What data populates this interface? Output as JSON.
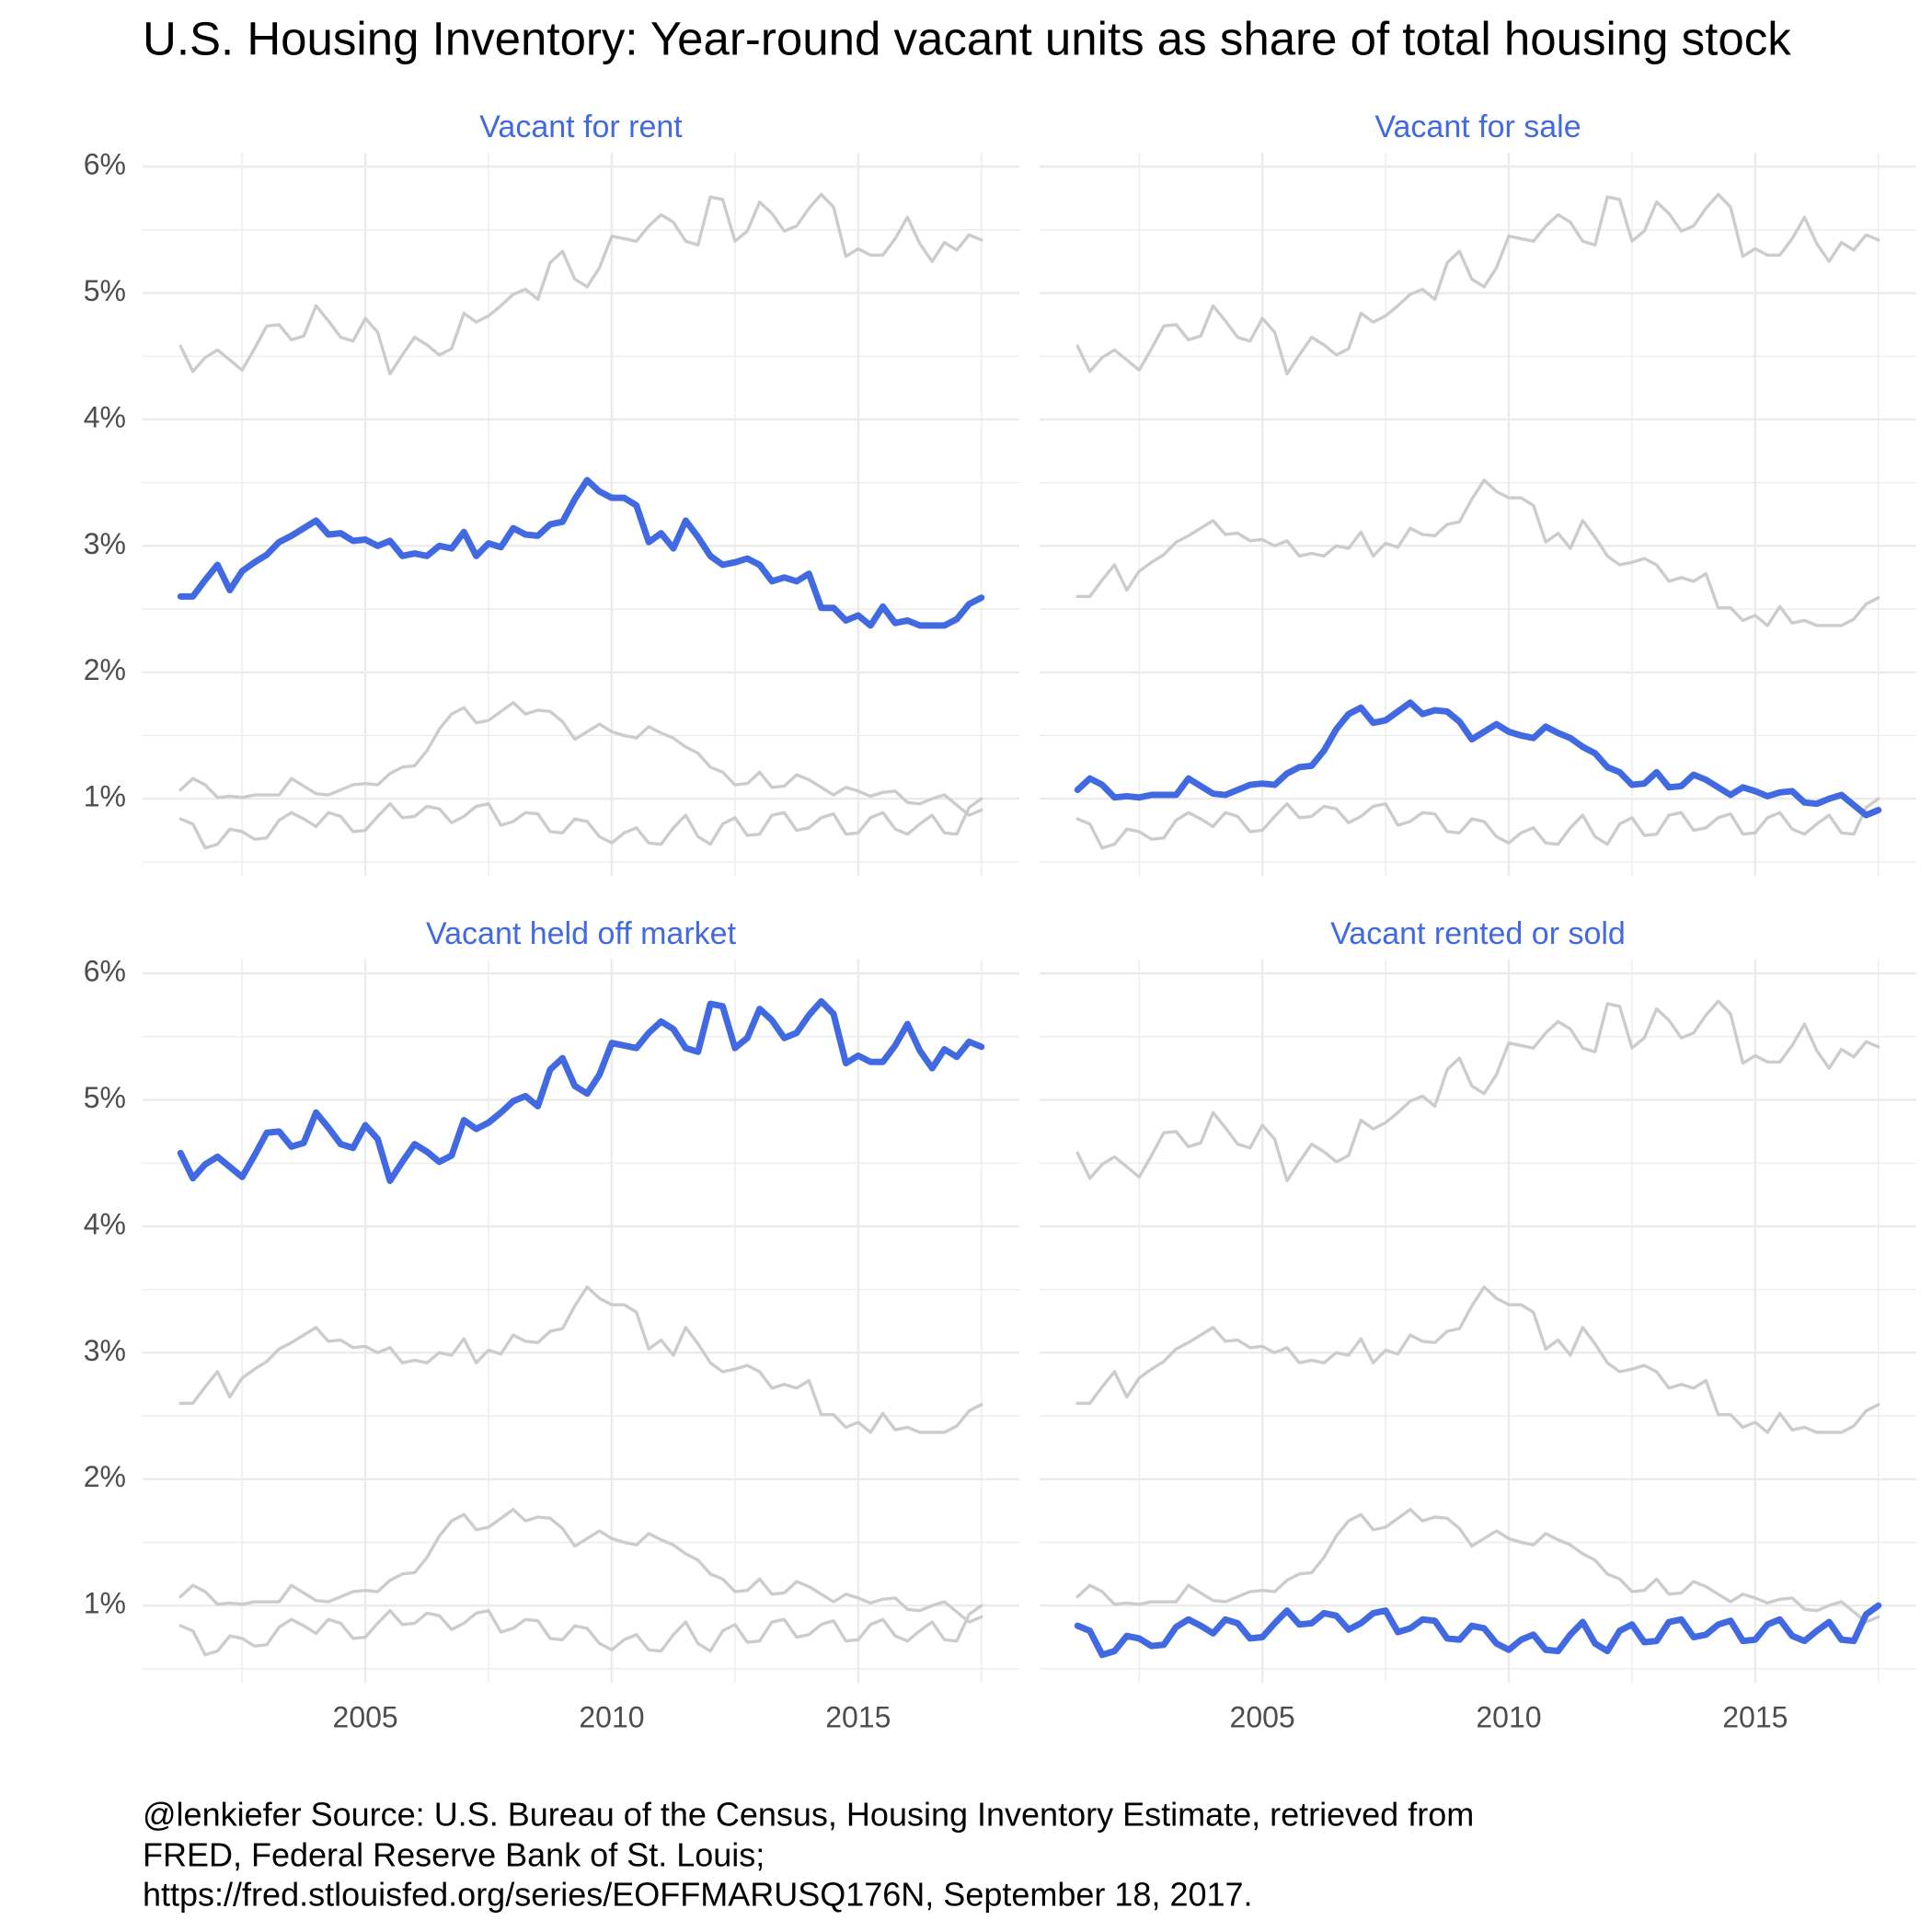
{
  "chart_data": {
    "type": "line",
    "title": "U.S. Housing Inventory: Year-round vacant units as share of total housing stock",
    "caption": [
      "@lenkiefer Source: U.S. Bureau of the Census, Housing Inventory Estimate, retrieved from",
      "FRED, Federal Reserve Bank of St. Louis;",
      "https://fred.stlouisfed.org/series/EOFFMARUSQ176N, September 18, 2017."
    ],
    "x": [
      2001.25,
      2001.5,
      2001.75,
      2002,
      2002.25,
      2002.5,
      2002.75,
      2003,
      2003.25,
      2003.5,
      2003.75,
      2004,
      2004.25,
      2004.5,
      2004.75,
      2005,
      2005.25,
      2005.5,
      2005.75,
      2006,
      2006.25,
      2006.5,
      2006.75,
      2007,
      2007.25,
      2007.5,
      2007.75,
      2008,
      2008.25,
      2008.5,
      2008.75,
      2009,
      2009.25,
      2009.5,
      2009.75,
      2010,
      2010.25,
      2010.5,
      2010.75,
      2011,
      2011.25,
      2011.5,
      2011.75,
      2012,
      2012.25,
      2012.5,
      2012.75,
      2013,
      2013.25,
      2013.5,
      2013.75,
      2014,
      2014.25,
      2014.5,
      2014.75,
      2015,
      2015.25,
      2015.5,
      2015.75,
      2016,
      2016.25,
      2016.5,
      2016.75,
      2017,
      2017.25,
      2017.5
    ],
    "series": [
      {
        "name": "Vacant for rent",
        "color": "#4169e1",
        "values": [
          2.6,
          2.6,
          2.73,
          2.85,
          2.65,
          2.8,
          2.87,
          2.93,
          3.03,
          3.08,
          3.14,
          3.2,
          3.09,
          3.1,
          3.04,
          3.05,
          3.0,
          3.04,
          2.92,
          2.94,
          2.92,
          3.0,
          2.98,
          3.11,
          2.92,
          3.02,
          2.99,
          3.14,
          3.09,
          3.08,
          3.17,
          3.19,
          3.37,
          3.52,
          3.43,
          3.38,
          3.38,
          3.32,
          3.03,
          3.1,
          2.98,
          3.2,
          3.07,
          2.92,
          2.85,
          2.87,
          2.9,
          2.85,
          2.72,
          2.75,
          2.72,
          2.78,
          2.51,
          2.51,
          2.41,
          2.45,
          2.37,
          2.52,
          2.39,
          2.41,
          2.37,
          2.37,
          2.37,
          2.42,
          2.54,
          2.59
        ]
      },
      {
        "name": "Vacant for sale",
        "color": "#4169e1",
        "values": [
          1.07,
          1.16,
          1.11,
          1.01,
          1.02,
          1.01,
          1.03,
          1.03,
          1.03,
          1.16,
          1.1,
          1.04,
          1.03,
          1.07,
          1.11,
          1.12,
          1.11,
          1.2,
          1.25,
          1.26,
          1.38,
          1.55,
          1.67,
          1.72,
          1.6,
          1.62,
          1.69,
          1.76,
          1.67,
          1.7,
          1.69,
          1.61,
          1.47,
          1.53,
          1.59,
          1.53,
          1.5,
          1.48,
          1.57,
          1.52,
          1.48,
          1.41,
          1.36,
          1.25,
          1.21,
          1.11,
          1.12,
          1.21,
          1.09,
          1.1,
          1.19,
          1.15,
          1.09,
          1.03,
          1.09,
          1.06,
          1.02,
          1.05,
          1.06,
          0.97,
          0.96,
          1.0,
          1.03,
          0.95,
          0.87,
          0.91
        ]
      },
      {
        "name": "Vacant held off market",
        "color": "#4169e1",
        "values": [
          4.58,
          4.38,
          4.49,
          4.55,
          4.47,
          4.39,
          4.56,
          4.74,
          4.75,
          4.63,
          4.66,
          4.9,
          4.78,
          4.65,
          4.62,
          4.8,
          4.69,
          4.36,
          4.51,
          4.65,
          4.59,
          4.51,
          4.56,
          4.84,
          4.77,
          4.82,
          4.9,
          4.99,
          5.03,
          4.95,
          5.24,
          5.33,
          5.11,
          5.05,
          5.2,
          5.45,
          5.43,
          5.41,
          5.53,
          5.62,
          5.56,
          5.41,
          5.38,
          5.76,
          5.74,
          5.41,
          5.49,
          5.72,
          5.63,
          5.49,
          5.53,
          5.67,
          5.78,
          5.68,
          5.29,
          5.35,
          5.3,
          5.3,
          5.43,
          5.6,
          5.39,
          5.25,
          5.4,
          5.34,
          5.46,
          5.42
        ]
      },
      {
        "name": "Vacant rented or sold",
        "color": "#4169e1",
        "values": [
          0.84,
          0.8,
          0.61,
          0.64,
          0.76,
          0.74,
          0.68,
          0.69,
          0.83,
          0.89,
          0.84,
          0.78,
          0.89,
          0.86,
          0.74,
          0.75,
          0.86,
          0.96,
          0.85,
          0.86,
          0.94,
          0.92,
          0.81,
          0.86,
          0.94,
          0.96,
          0.79,
          0.82,
          0.89,
          0.88,
          0.74,
          0.73,
          0.84,
          0.82,
          0.7,
          0.65,
          0.73,
          0.77,
          0.65,
          0.64,
          0.77,
          0.87,
          0.7,
          0.64,
          0.8,
          0.85,
          0.71,
          0.72,
          0.87,
          0.89,
          0.75,
          0.77,
          0.85,
          0.88,
          0.72,
          0.73,
          0.85,
          0.89,
          0.76,
          0.72,
          0.8,
          0.87,
          0.73,
          0.72,
          0.93,
          1.0
        ]
      }
    ],
    "context_color": "#cccccc",
    "facet_columns": 2,
    "xlim": [
      2000.48,
      2018.27
    ],
    "xticks": [
      2005,
      2010,
      2015
    ],
    "ylim": [
      0.39,
      6.11
    ],
    "yticks": [
      {
        "value": 1,
        "label": "1%"
      },
      {
        "value": 2,
        "label": "2%"
      },
      {
        "value": 3,
        "label": "3%"
      },
      {
        "value": 4,
        "label": "4%"
      },
      {
        "value": 5,
        "label": "5%"
      },
      {
        "value": 6,
        "label": "6%"
      }
    ],
    "grid": true,
    "minor_grid": true
  }
}
